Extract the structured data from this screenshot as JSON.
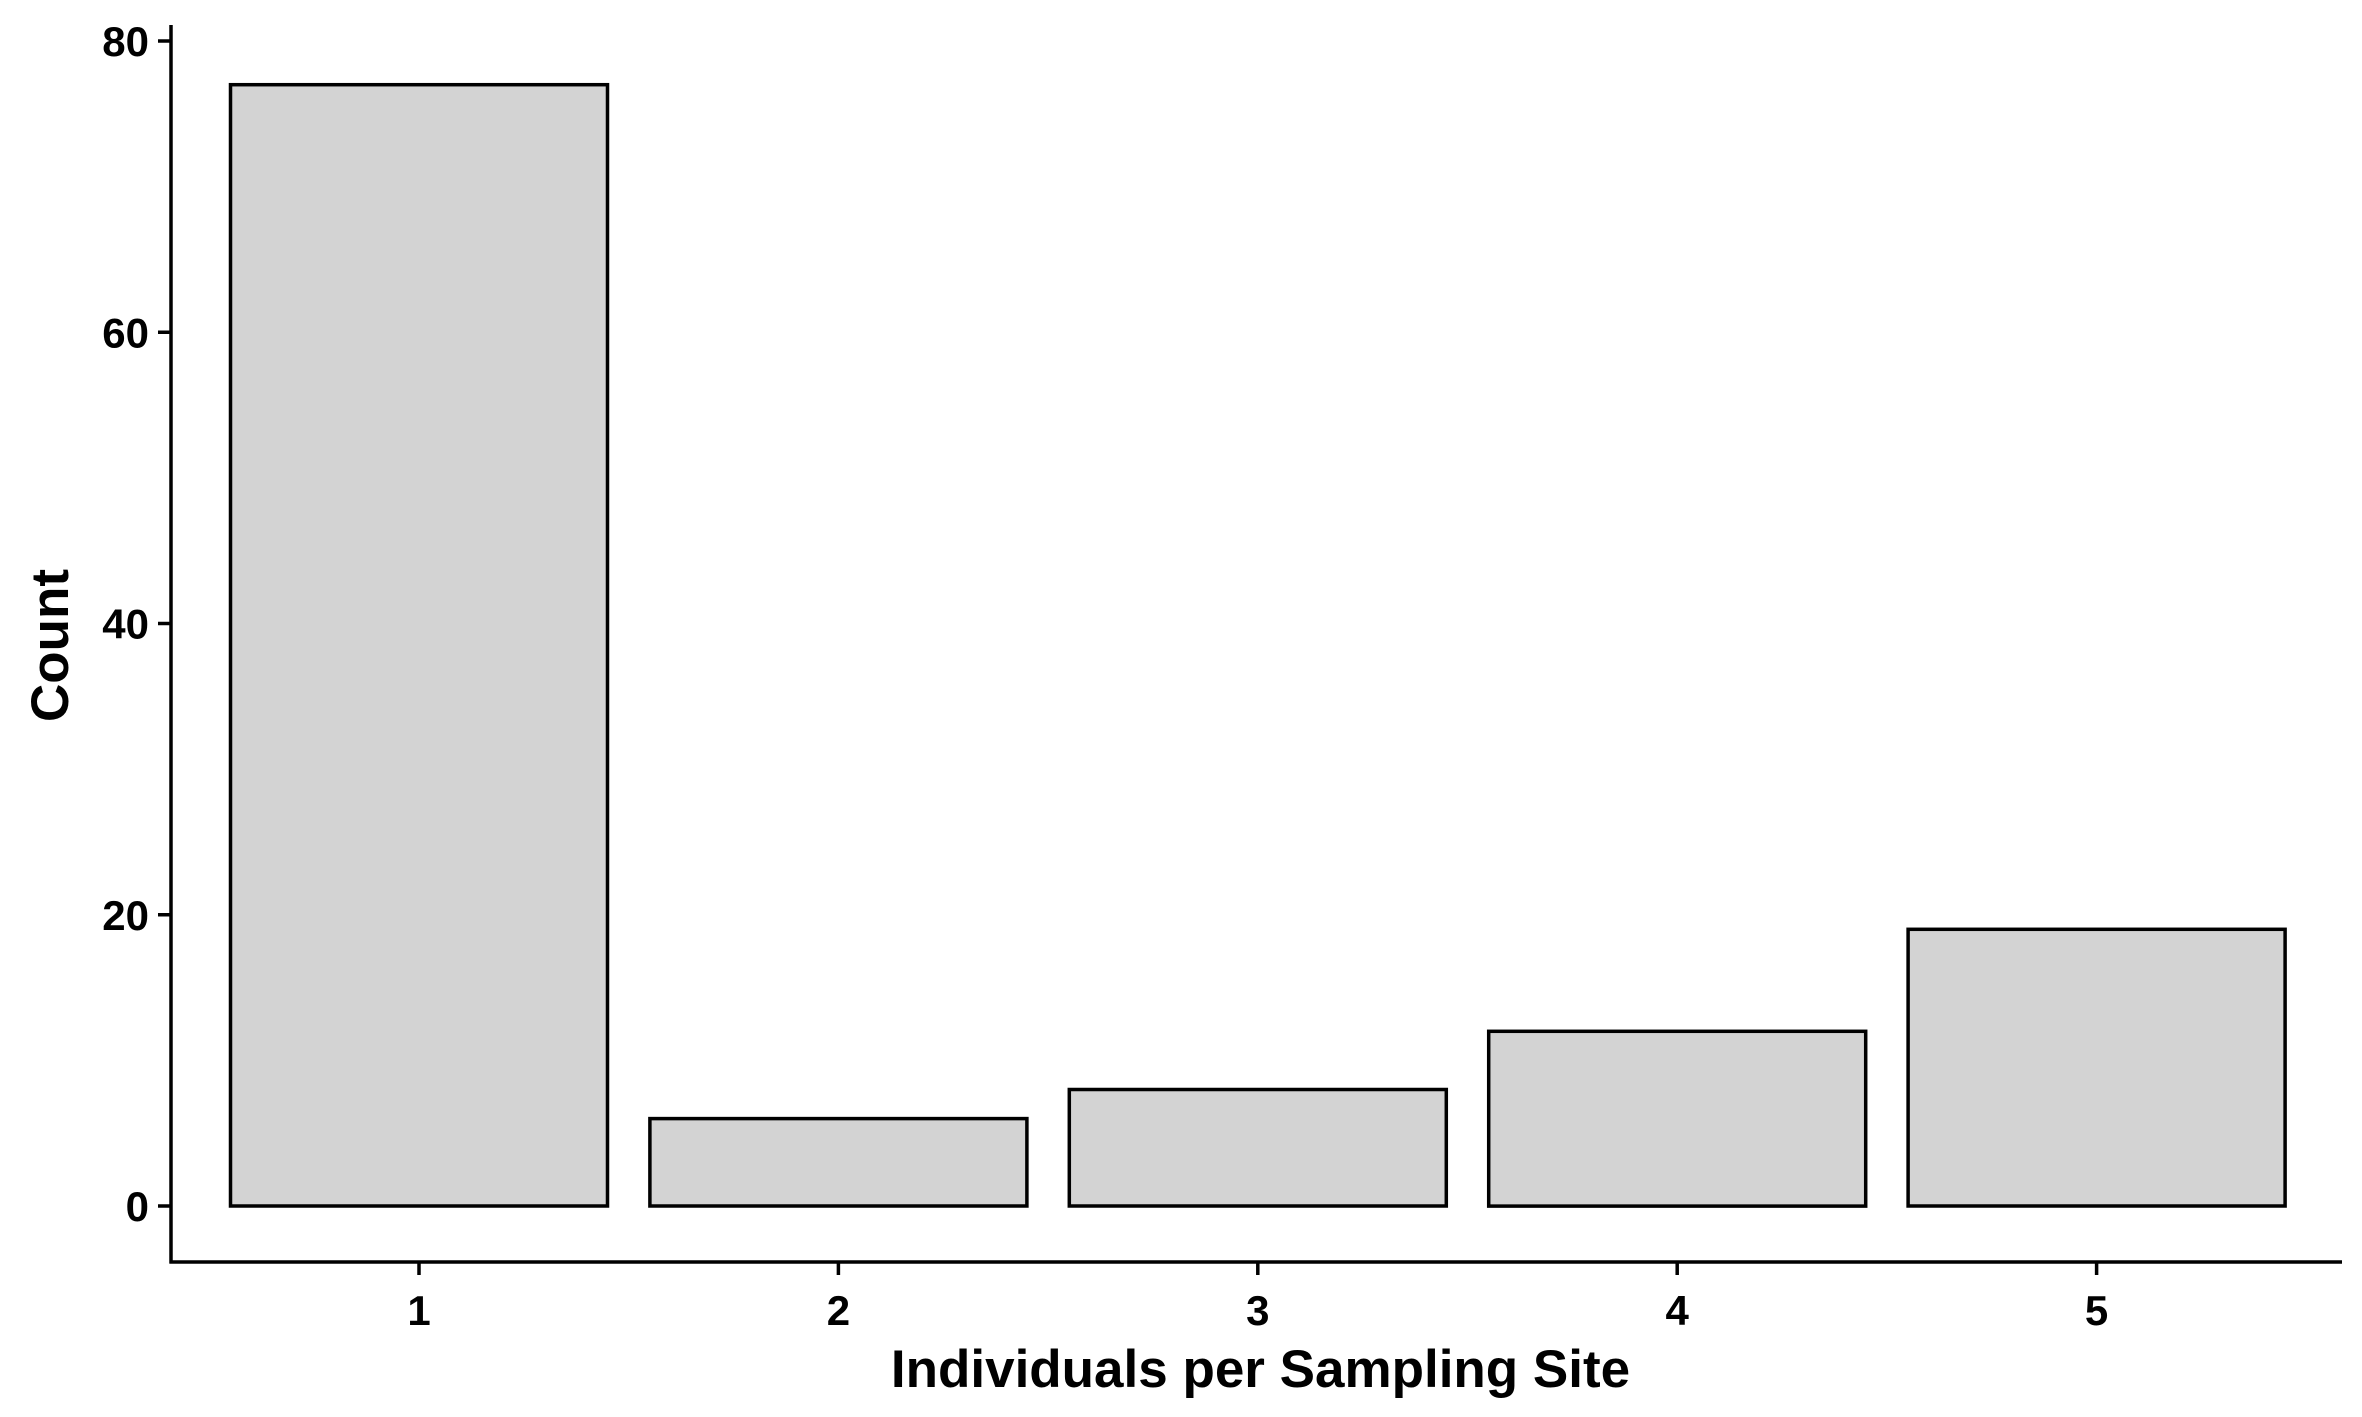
{
  "chart_data": {
    "type": "bar",
    "categories": [
      "1",
      "2",
      "3",
      "4",
      "5"
    ],
    "values": [
      77,
      6,
      8,
      12,
      19
    ],
    "title": "",
    "xlabel": "Individuals per Sampling Site",
    "ylabel": "Count",
    "ylim": [
      0,
      80
    ],
    "yticks": [
      0,
      20,
      40,
      60,
      80
    ],
    "grid": false,
    "legend": "none",
    "colors": {
      "bar_fill": "#d3d3d3",
      "bar_stroke": "#000000",
      "axis": "#000000",
      "background": "#ffffff"
    }
  }
}
